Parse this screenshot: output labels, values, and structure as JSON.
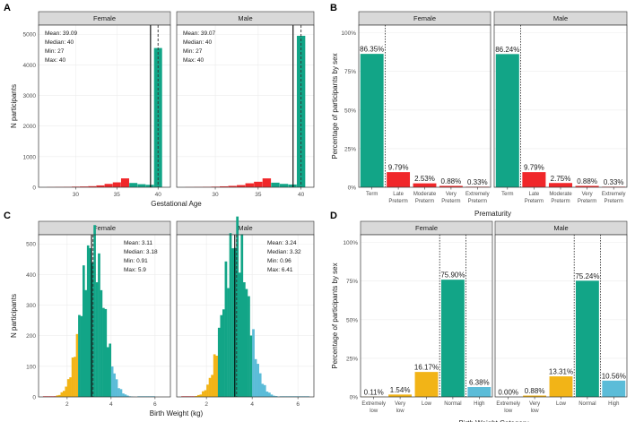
{
  "colors": {
    "term": "#12a587",
    "preterm": "#f0272a",
    "low": "#f2b417",
    "normal": "#12a587",
    "high": "#5bbcd8",
    "strip": "#d9d9d9",
    "grid": "#ececec",
    "axis_text": "#4d4d4d",
    "text": "#1a1a1a"
  },
  "chart_data": [
    {
      "id": "A",
      "panel_letter": "A",
      "type": "histogram",
      "xlabel": "Gestational Age",
      "ylabel": "N participants",
      "xlim": [
        25.5,
        41.5
      ],
      "ylim": [
        0,
        5300
      ],
      "xticks": [
        30,
        35,
        40
      ],
      "yticks": [
        0,
        1000,
        2000,
        3000,
        4000,
        5000
      ],
      "facets": [
        {
          "name": "Female",
          "stats": [
            "Mean: 39.09",
            "Median: 40",
            "Min: 27",
            "Max: 40"
          ],
          "mean": 39.09,
          "median": 40,
          "bars": [
            {
              "x": 27,
              "y": 6,
              "c": "preterm"
            },
            {
              "x": 28,
              "y": 10,
              "c": "preterm"
            },
            {
              "x": 29,
              "y": 14,
              "c": "preterm"
            },
            {
              "x": 30,
              "y": 20,
              "c": "preterm"
            },
            {
              "x": 31,
              "y": 25,
              "c": "preterm"
            },
            {
              "x": 32,
              "y": 35,
              "c": "preterm"
            },
            {
              "x": 33,
              "y": 60,
              "c": "preterm"
            },
            {
              "x": 34,
              "y": 110,
              "c": "preterm"
            },
            {
              "x": 35,
              "y": 160,
              "c": "preterm"
            },
            {
              "x": 36,
              "y": 290,
              "c": "preterm"
            },
            {
              "x": 37,
              "y": 140,
              "c": "term"
            },
            {
              "x": 38,
              "y": 100,
              "c": "term"
            },
            {
              "x": 39,
              "y": 80,
              "c": "term"
            },
            {
              "x": 40,
              "y": 4550,
              "c": "term"
            }
          ]
        },
        {
          "name": "Male",
          "stats": [
            "Mean: 39.07",
            "Median: 40",
            "Min: 27",
            "Max: 40"
          ],
          "mean": 39.07,
          "median": 40,
          "bars": [
            {
              "x": 27,
              "y": 6,
              "c": "preterm"
            },
            {
              "x": 28,
              "y": 10,
              "c": "preterm"
            },
            {
              "x": 29,
              "y": 15,
              "c": "preterm"
            },
            {
              "x": 30,
              "y": 20,
              "c": "preterm"
            },
            {
              "x": 31,
              "y": 30,
              "c": "preterm"
            },
            {
              "x": 32,
              "y": 45,
              "c": "preterm"
            },
            {
              "x": 33,
              "y": 70,
              "c": "preterm"
            },
            {
              "x": 34,
              "y": 130,
              "c": "preterm"
            },
            {
              "x": 35,
              "y": 180,
              "c": "preterm"
            },
            {
              "x": 36,
              "y": 290,
              "c": "preterm"
            },
            {
              "x": 37,
              "y": 150,
              "c": "term"
            },
            {
              "x": 38,
              "y": 110,
              "c": "term"
            },
            {
              "x": 39,
              "y": 90,
              "c": "term"
            },
            {
              "x": 40,
              "y": 4950,
              "c": "term"
            }
          ]
        }
      ]
    },
    {
      "id": "B",
      "panel_letter": "B",
      "type": "bar",
      "xlabel": "Prematurity",
      "ylabel": "Percentage of participants by sex",
      "ylim": [
        0,
        105
      ],
      "yticks": [
        "0%",
        "25%",
        "50%",
        "75%",
        "100%"
      ],
      "categories": [
        "Term",
        "Late\nPreterm",
        "Moderate\nPreterm",
        "Very\nPreterm",
        "Extremely\nPreterm"
      ],
      "bar_colors": [
        "term",
        "preterm",
        "preterm",
        "preterm",
        "preterm"
      ],
      "divider_after": 0,
      "facets": [
        {
          "name": "Female",
          "values": [
            86.35,
            9.79,
            2.53,
            0.88,
            0.33
          ],
          "labels": [
            "86.35%",
            "9.79%",
            "2.53%",
            "0.88%",
            "0.33%"
          ]
        },
        {
          "name": "Male",
          "values": [
            86.24,
            9.79,
            2.75,
            0.88,
            0.33
          ],
          "labels": [
            "86.24%",
            "9.79%",
            "2.75%",
            "0.88%",
            "0.33%"
          ]
        }
      ]
    },
    {
      "id": "C",
      "panel_letter": "C",
      "type": "histogram",
      "xlabel": "Birth Weight (kg)",
      "ylabel": "N participants",
      "xlim": [
        0.7,
        6.7
      ],
      "ylim": [
        0,
        530
      ],
      "xticks": [
        2,
        4,
        6
      ],
      "yticks": [
        0,
        100,
        200,
        300,
        400,
        500
      ],
      "facets": [
        {
          "name": "Female",
          "stats": [
            "Mean: 3.11",
            "Median: 3.18",
            "Min: 0.91",
            "Max: 5.9"
          ],
          "mean": 3.11,
          "median": 3.18,
          "mu": 3.15,
          "sd": 0.52,
          "peak": 490,
          "min": 0.91,
          "max": 5.9
        },
        {
          "name": "Male",
          "stats": [
            "Mean: 3.24",
            "Median: 3.32",
            "Min: 0.96",
            "Max: 6.41"
          ],
          "mean": 3.24,
          "median": 3.32,
          "mu": 3.28,
          "sd": 0.54,
          "peak": 520,
          "min": 0.96,
          "max": 6.41
        }
      ],
      "low_threshold": 2.5,
      "high_threshold": 4.0
    },
    {
      "id": "D",
      "panel_letter": "D",
      "type": "bar",
      "xlabel": "Birth Weight Category",
      "ylabel": "Percentage of participants by sex",
      "ylim": [
        0,
        105
      ],
      "yticks": [
        "0%",
        "25%",
        "50%",
        "75%",
        "100%"
      ],
      "categories": [
        "Extremely\nlow",
        "Very\nlow",
        "Low",
        "Normal",
        "High"
      ],
      "bar_colors": [
        "low",
        "low",
        "low",
        "normal",
        "high"
      ],
      "divider_around": 3,
      "facets": [
        {
          "name": "Female",
          "values": [
            0.11,
            1.54,
            16.17,
            75.9,
            6.38
          ],
          "labels": [
            "0.11%",
            "1.54%",
            "16.17%",
            "75.90%",
            "6.38%"
          ]
        },
        {
          "name": "Male",
          "values": [
            0.0,
            0.88,
            13.31,
            75.24,
            10.56
          ],
          "labels": [
            "0.00%",
            "0.88%",
            "13.31%",
            "75.24%",
            "10.56%"
          ]
        }
      ]
    }
  ]
}
